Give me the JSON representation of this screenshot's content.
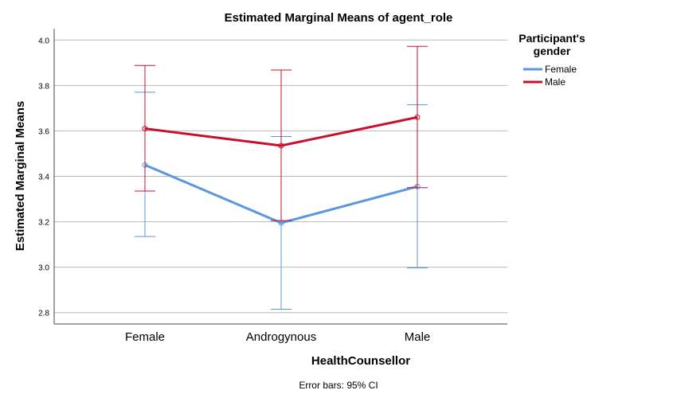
{
  "chart_data": {
    "type": "line",
    "title": "Estimated Marginal Means of agent_role",
    "xlabel": "HealthCounsellor",
    "ylabel": "Estimated Marginal Means",
    "categories": [
      "Female",
      "Androgynous",
      "Male"
    ],
    "ylim": [
      2.75,
      4.05
    ],
    "yticks": [
      "2.8",
      "3.0",
      "3.2",
      "3.4",
      "3.6",
      "3.8",
      "4.0"
    ],
    "grid": true,
    "legend": {
      "title_line1": "Participant's",
      "title_line2": "gender",
      "placement": "right"
    },
    "series": [
      {
        "name": "Female",
        "color": "#5b97e0",
        "values": [
          3.45,
          3.195,
          3.355
        ],
        "ci_low": [
          3.135,
          2.815,
          2.997
        ],
        "ci_high": [
          3.77,
          3.575,
          3.715
        ]
      },
      {
        "name": "Male",
        "color": "#c8102e",
        "values": [
          3.61,
          3.535,
          3.66
        ],
        "ci_low": [
          3.335,
          3.205,
          3.35
        ],
        "ci_high": [
          3.888,
          3.868,
          3.972
        ]
      }
    ],
    "footnote": "Error bars: 95% CI"
  }
}
